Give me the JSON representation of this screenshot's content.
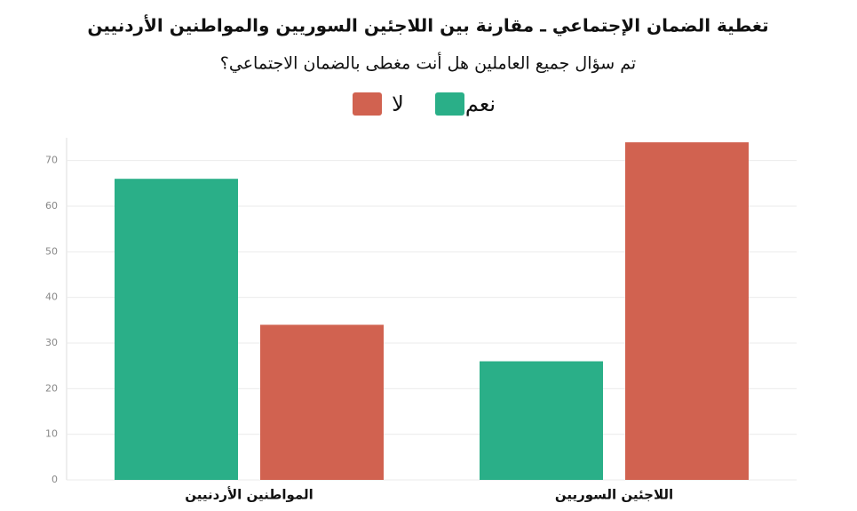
{
  "chart_data": {
    "type": "bar",
    "title": "تغطية الضمان الإجتماعي ـ مقارنة بين اللاجئين السوريين والمواطنين الأردنيين",
    "subtitle": "تم سؤال جميع العاملين هل أنت مغطى بالضمان الاجتماعي؟",
    "categories": [
      "المواطنين الأردنيين",
      "اللاجئين السوريين"
    ],
    "series": [
      {
        "name": "نعم",
        "color": "#2aaf88",
        "values": [
          66,
          26
        ]
      },
      {
        "name": "لا",
        "color": "#d16250",
        "values": [
          34,
          74
        ]
      }
    ],
    "ylim": [
      0,
      75
    ],
    "yticks": [
      0,
      10,
      20,
      30,
      40,
      50,
      60,
      70
    ],
    "grid": true
  }
}
